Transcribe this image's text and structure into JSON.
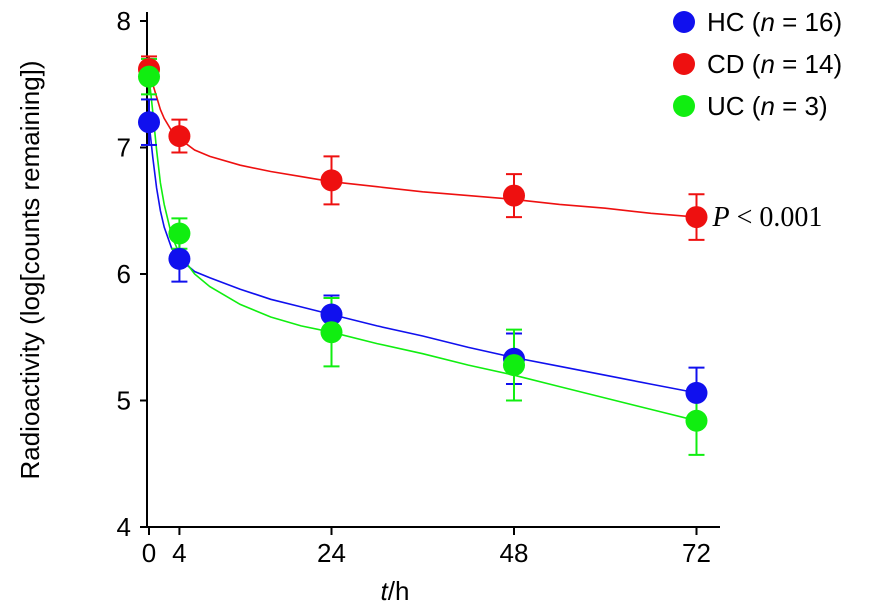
{
  "chart_data": {
    "type": "line",
    "xlabel_italic": "t",
    "xlabel_unit": "/h",
    "ylabel": "Radioactivity (log[counts remaining])",
    "xlim": [
      -2,
      75
    ],
    "ylim": [
      4,
      8
    ],
    "xticks": [
      0,
      4,
      24,
      48,
      72
    ],
    "yticks": [
      4,
      5,
      6,
      7,
      8
    ],
    "legend_position": "top-right",
    "series": [
      {
        "name": "HC (n = 16)",
        "label_prefix": "HC (",
        "label_n": "n",
        "label_suffix": " = 16)",
        "color": "#1010ee",
        "x": [
          0,
          4,
          24,
          48,
          72
        ],
        "y": [
          7.2,
          6.12,
          5.68,
          5.33,
          5.06
        ],
        "err": [
          0.18,
          0.18,
          0.15,
          0.2,
          0.2
        ],
        "fit_x": [
          0,
          0.5,
          1,
          1.5,
          2,
          3,
          4,
          6,
          8,
          12,
          16,
          20,
          24,
          30,
          36,
          42,
          48,
          54,
          60,
          66,
          72
        ],
        "fit_y": [
          7.2,
          6.92,
          6.68,
          6.5,
          6.37,
          6.2,
          6.12,
          6.02,
          5.97,
          5.88,
          5.8,
          5.74,
          5.68,
          5.59,
          5.51,
          5.42,
          5.34,
          5.27,
          5.2,
          5.13,
          5.06
        ]
      },
      {
        "name": "CD (n = 14)",
        "label_prefix": "CD (",
        "label_n": "n",
        "label_suffix": " = 14)",
        "color": "#ee1010",
        "x": [
          0,
          4,
          24,
          48,
          72
        ],
        "y": [
          7.62,
          7.09,
          6.74,
          6.62,
          6.45
        ],
        "err": [
          0.1,
          0.13,
          0.19,
          0.17,
          0.18
        ],
        "fit_x": [
          0,
          0.5,
          1,
          1.5,
          2,
          3,
          4,
          6,
          8,
          12,
          16,
          20,
          24,
          30,
          36,
          42,
          48,
          54,
          60,
          66,
          72
        ],
        "fit_y": [
          7.62,
          7.5,
          7.4,
          7.3,
          7.23,
          7.13,
          7.07,
          6.98,
          6.93,
          6.86,
          6.81,
          6.77,
          6.73,
          6.69,
          6.65,
          6.62,
          6.59,
          6.55,
          6.52,
          6.48,
          6.45
        ]
      },
      {
        "name": "UC (n = 3)",
        "label_prefix": "UC (",
        "label_n": "n",
        "label_suffix": " = 3)",
        "color": "#10ee10",
        "x": [
          0,
          4,
          24,
          48,
          72
        ],
        "y": [
          7.56,
          6.32,
          5.54,
          5.28,
          4.84
        ],
        "err": [
          0.14,
          0.12,
          0.27,
          0.28,
          0.27
        ],
        "fit_x": [
          0,
          0.5,
          1,
          1.5,
          2,
          3,
          4,
          6,
          8,
          12,
          16,
          20,
          24,
          30,
          36,
          42,
          48,
          54,
          60,
          66,
          72
        ],
        "fit_y": [
          7.56,
          7.28,
          6.98,
          6.72,
          6.55,
          6.3,
          6.16,
          6.0,
          5.9,
          5.76,
          5.66,
          5.59,
          5.54,
          5.45,
          5.37,
          5.28,
          5.2,
          5.11,
          5.02,
          4.93,
          4.84
        ]
      }
    ],
    "annotation": {
      "italic": "P",
      "rest": " < 0.001",
      "x": 72,
      "y": 6.45
    }
  }
}
